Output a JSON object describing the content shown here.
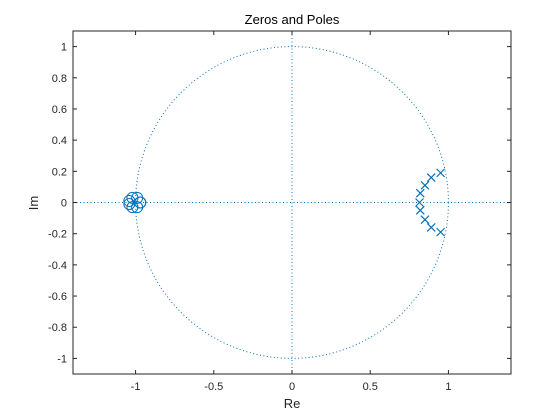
{
  "chart_data": {
    "type": "scatter",
    "title": "Zeros and Poles",
    "xlabel": "Re",
    "ylabel": "Im",
    "xlim": [
      -1.4,
      1.4
    ],
    "ylim": [
      -1.1,
      1.1
    ],
    "xticks": [
      -1,
      -0.5,
      0,
      0.5,
      1
    ],
    "xtick_labels": [
      "-1",
      "-0.5",
      "0",
      "0.5",
      "1"
    ],
    "yticks": [
      1,
      0.8,
      0.6,
      0.4,
      0.2,
      0,
      -0.2,
      -0.4,
      -0.6,
      -0.8,
      -1
    ],
    "ytick_labels": [
      "1",
      "0.8",
      "0.6",
      "0.4",
      "0.2",
      "0",
      "-0.2",
      "-0.4",
      "-0.6",
      "-0.8",
      "-1"
    ],
    "grid": false,
    "unit_circle": true,
    "color": "#0072BD",
    "zeros": {
      "marker": "o",
      "points": [
        [
          -0.97,
          0.0
        ],
        [
          -0.99,
          0.03
        ],
        [
          -1.02,
          0.03
        ],
        [
          -1.04,
          0.01
        ],
        [
          -1.04,
          -0.01
        ],
        [
          -1.02,
          -0.03
        ],
        [
          -0.99,
          -0.03
        ],
        [
          -0.97,
          0.0
        ]
      ]
    },
    "poles": {
      "marker": "x",
      "points": [
        [
          0.95,
          0.19
        ],
        [
          0.89,
          0.16
        ],
        [
          0.85,
          0.11
        ],
        [
          0.82,
          0.06
        ],
        [
          0.815,
          0.0
        ],
        [
          0.82,
          -0.05
        ],
        [
          0.85,
          -0.11
        ],
        [
          0.89,
          -0.16
        ],
        [
          0.95,
          -0.19
        ]
      ]
    }
  }
}
